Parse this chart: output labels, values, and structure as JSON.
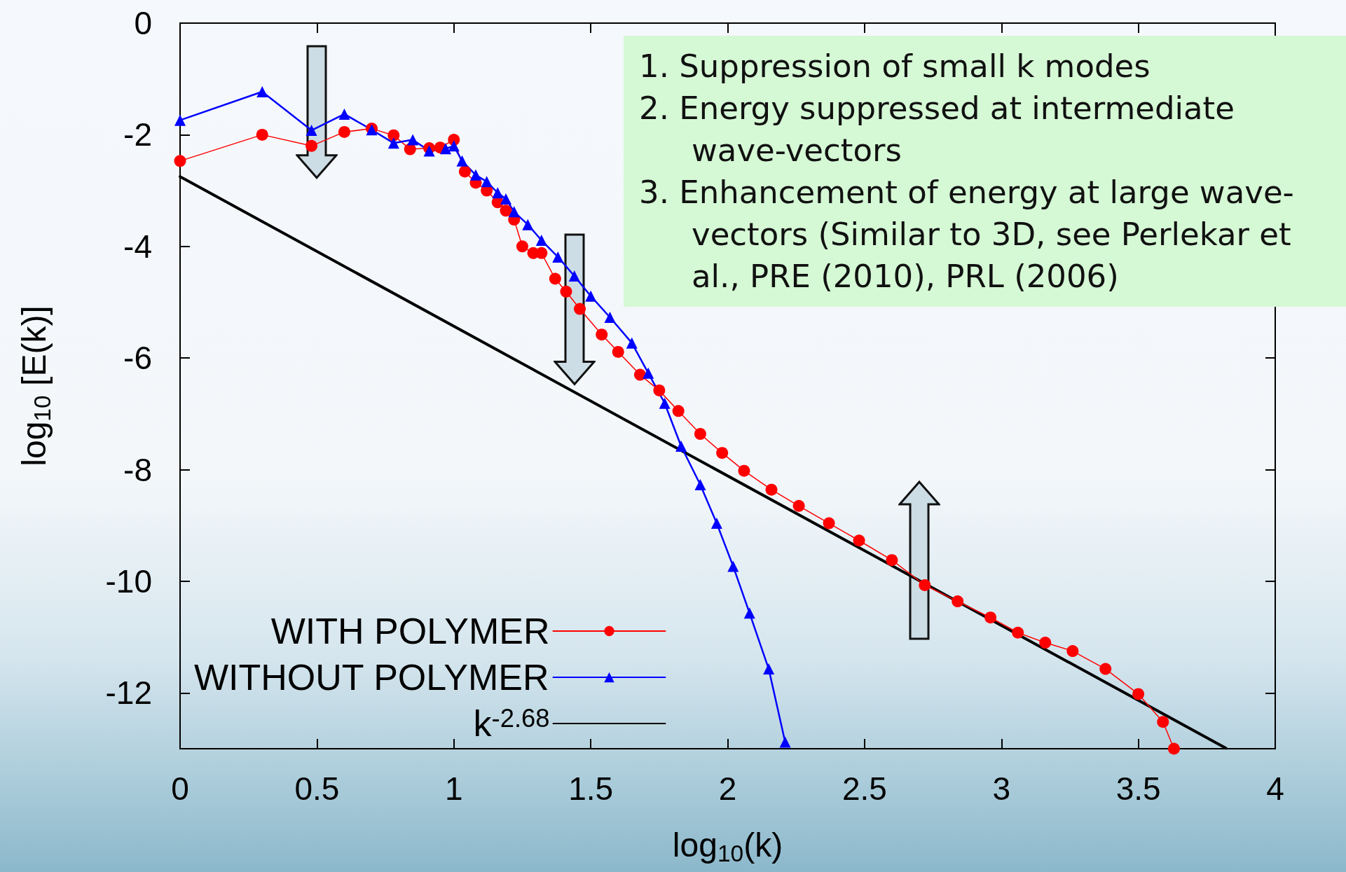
{
  "chart_data": {
    "type": "line",
    "xlabel": "log$_{10}$(k)",
    "ylabel": "log$_{10}$ [E(k)]",
    "xlim": [
      0,
      4
    ],
    "xticks": [
      0,
      0.5,
      1,
      1.5,
      2,
      2.5,
      3,
      3.5,
      4
    ],
    "ylim": [
      -13,
      0
    ],
    "yticks": [
      0,
      -2,
      -4,
      -6,
      -8,
      -10,
      -12
    ],
    "grid": false,
    "legend": "bottom left",
    "line_style": "solid",
    "annotations": [
      "1.  Suppression of  small k modes",
      "2.  Energy suppressed at intermediate wave-vectors",
      "3.  Enhancement of  energy at large wave-vectors (Similar to 3D, see Perlekar et al., PRE (2010), PRL (2006)"
    ],
    "series": [
      {
        "name": "WITH POLYMER",
        "color": "#ff0000",
        "marker": "circle",
        "x": [
          0,
          0.3,
          0.48,
          0.6,
          0.7,
          0.78,
          0.84,
          0.91,
          0.95,
          1.0,
          1.04,
          1.08,
          1.12,
          1.16,
          1.19,
          1.22,
          1.25,
          1.29,
          1.32,
          1.37,
          1.41,
          1.46,
          1.54,
          1.6,
          1.68,
          1.75,
          1.82,
          1.9,
          1.98,
          2.06,
          2.16,
          2.26,
          2.37,
          2.48,
          2.6,
          2.72,
          2.84,
          2.96,
          3.06,
          3.16,
          3.26,
          3.38,
          3.5,
          3.59,
          3.63
        ],
        "values": [
          -2.47,
          -2.0,
          -2.2,
          -1.95,
          -1.89,
          -2.01,
          -2.26,
          -2.24,
          -2.23,
          -2.09,
          -2.66,
          -2.86,
          -3.0,
          -3.21,
          -3.36,
          -3.52,
          -4.0,
          -4.12,
          -4.12,
          -4.58,
          -4.81,
          -5.12,
          -5.58,
          -5.89,
          -6.3,
          -6.58,
          -6.95,
          -7.36,
          -7.7,
          -8.02,
          -8.36,
          -8.65,
          -8.96,
          -9.27,
          -9.62,
          -10.07,
          -10.36,
          -10.65,
          -10.92,
          -11.1,
          -11.25,
          -11.57,
          -12.02,
          -12.52,
          -13.0
        ]
      },
      {
        "name": "WITHOUT POLYMER",
        "color": "#0000ff",
        "marker": "triangle",
        "x": [
          0,
          0.3,
          0.48,
          0.6,
          0.7,
          0.78,
          0.85,
          0.91,
          0.97,
          1.0,
          1.03,
          1.08,
          1.12,
          1.16,
          1.19,
          1.22,
          1.27,
          1.32,
          1.38,
          1.44,
          1.5,
          1.57,
          1.65,
          1.71,
          1.77,
          1.83,
          1.9,
          1.96,
          2.02,
          2.08,
          2.15,
          2.21
        ],
        "values": [
          -1.74,
          -1.23,
          -1.92,
          -1.63,
          -1.91,
          -2.15,
          -2.09,
          -2.29,
          -2.25,
          -2.2,
          -2.47,
          -2.72,
          -2.84,
          -3.04,
          -3.15,
          -3.38,
          -3.61,
          -3.89,
          -4.19,
          -4.53,
          -4.89,
          -5.27,
          -5.73,
          -6.27,
          -6.81,
          -7.58,
          -8.27,
          -8.96,
          -9.73,
          -10.57,
          -11.57,
          -12.88
        ]
      },
      {
        "name": "k$^{-2.68}$",
        "color": "#000000",
        "marker": "none",
        "x": [
          0,
          3.82
        ],
        "values": [
          -2.75,
          -12.99
        ]
      }
    ]
  }
}
